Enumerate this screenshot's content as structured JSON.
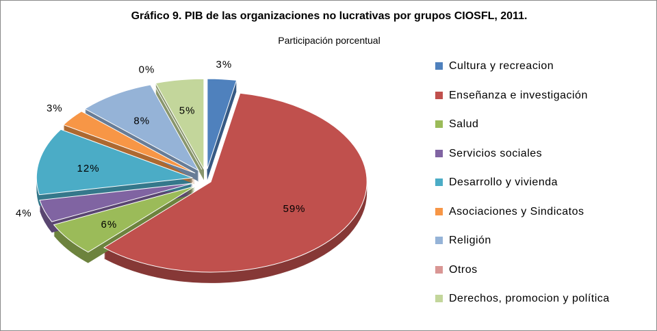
{
  "chart_data": {
    "type": "pie",
    "title": "Gráfico 9. PIB de las organizaciones no lucrativas por grupos CIOSFL, 2011.",
    "subtitle": "Participación porcentual",
    "categories": [
      "Cultura y recreacion",
      "Enseñanza e investigación",
      "Salud",
      "Servicios sociales",
      "Desarrollo y vivienda",
      "Asociaciones y Sindicatos",
      "Religión",
      "Otros",
      "Derechos, promocion y política"
    ],
    "values": [
      3,
      59,
      6,
      4,
      12,
      3,
      8,
      0,
      5
    ],
    "value_labels": [
      "3%",
      "59%",
      "6%",
      "4%",
      "12%",
      "3%",
      "8%",
      "0%",
      "5%"
    ],
    "colors": [
      "#4f81bd",
      "#c0504d",
      "#9bbb59",
      "#8064a2",
      "#4bacc6",
      "#f79646",
      "#95b3d7",
      "#d99694",
      "#c3d69b"
    ],
    "legend": "right"
  }
}
